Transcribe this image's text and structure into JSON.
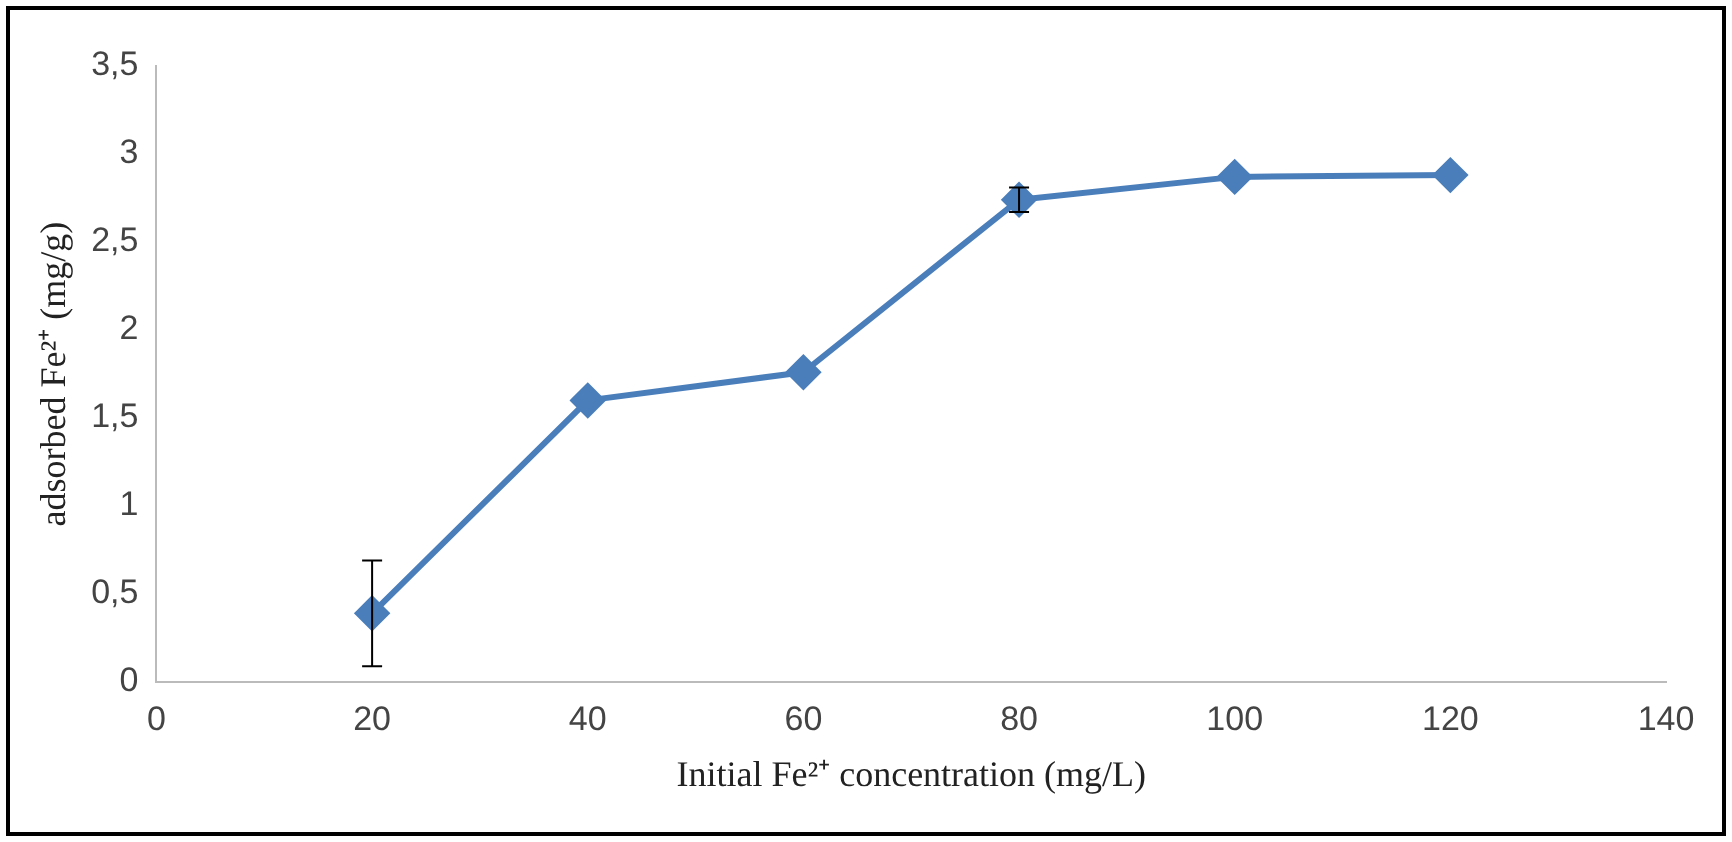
{
  "chart_data": {
    "type": "line",
    "xlabel": "Initial Fe²⁺ concentration (mg/L)",
    "ylabel": "adsorbed Fe²⁺ (mg/g)",
    "x": [
      20,
      40,
      60,
      80,
      100,
      120
    ],
    "series": [
      {
        "color": "#4a7ebb",
        "values": [
          0.39,
          1.6,
          1.76,
          2.74,
          2.87,
          2.88
        ],
        "errors": [
          0.3,
          null,
          null,
          0.07,
          null,
          null
        ]
      }
    ],
    "xlim": [
      0,
      140
    ],
    "xticks": [
      0,
      20,
      40,
      60,
      80,
      100,
      120,
      140
    ],
    "ylim": [
      0,
      3.5
    ],
    "yticks": [
      0,
      {
        "value": 0.5,
        "label": "0,5"
      },
      1,
      {
        "value": 1.5,
        "label": "1,5"
      },
      2,
      {
        "value": 2.5,
        "label": "2,5"
      },
      3,
      {
        "value": 3.5,
        "label": "3,5"
      }
    ],
    "grid": false,
    "legend": false,
    "marker": "diamond",
    "line_style": "solid"
  }
}
